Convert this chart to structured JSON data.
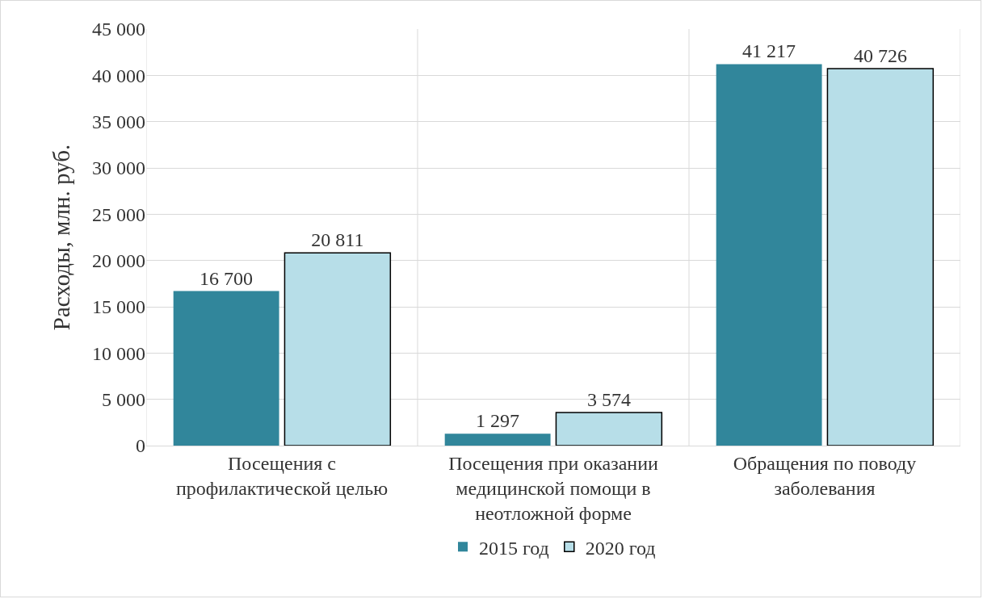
{
  "chart_data": {
    "type": "bar",
    "ylabel": "Расходы, млн. руб.",
    "categories": [
      "Посещения с\nпрофилактической целью",
      "Посещения при оказании\nмедицинской помощи в\nнеотложной форме",
      "Обращения по поводу\nзаболевания"
    ],
    "series": [
      {
        "name": "2015 год",
        "color": "#31869b",
        "values": [
          16700,
          1297,
          41217
        ],
        "value_labels": [
          "16 700",
          "1 297",
          "41 217"
        ]
      },
      {
        "name": "2020 год",
        "color": "#b7dee8",
        "values": [
          20811,
          3574,
          40726
        ],
        "value_labels": [
          "20 811",
          "3 574",
          "40 726"
        ]
      }
    ],
    "ylim": [
      0,
      45000
    ],
    "yticks": [
      {
        "value": 0,
        "label": "0"
      },
      {
        "value": 5000,
        "label": "5 000"
      },
      {
        "value": 10000,
        "label": "10 000"
      },
      {
        "value": 15000,
        "label": "15 000"
      },
      {
        "value": 20000,
        "label": "20 000"
      },
      {
        "value": 25000,
        "label": "25 000"
      },
      {
        "value": 30000,
        "label": "30 000"
      },
      {
        "value": 35000,
        "label": "35 000"
      },
      {
        "value": 40000,
        "label": "40 000"
      },
      {
        "value": 45000,
        "label": "45 000"
      }
    ],
    "grid": true,
    "legend": "bottom"
  }
}
